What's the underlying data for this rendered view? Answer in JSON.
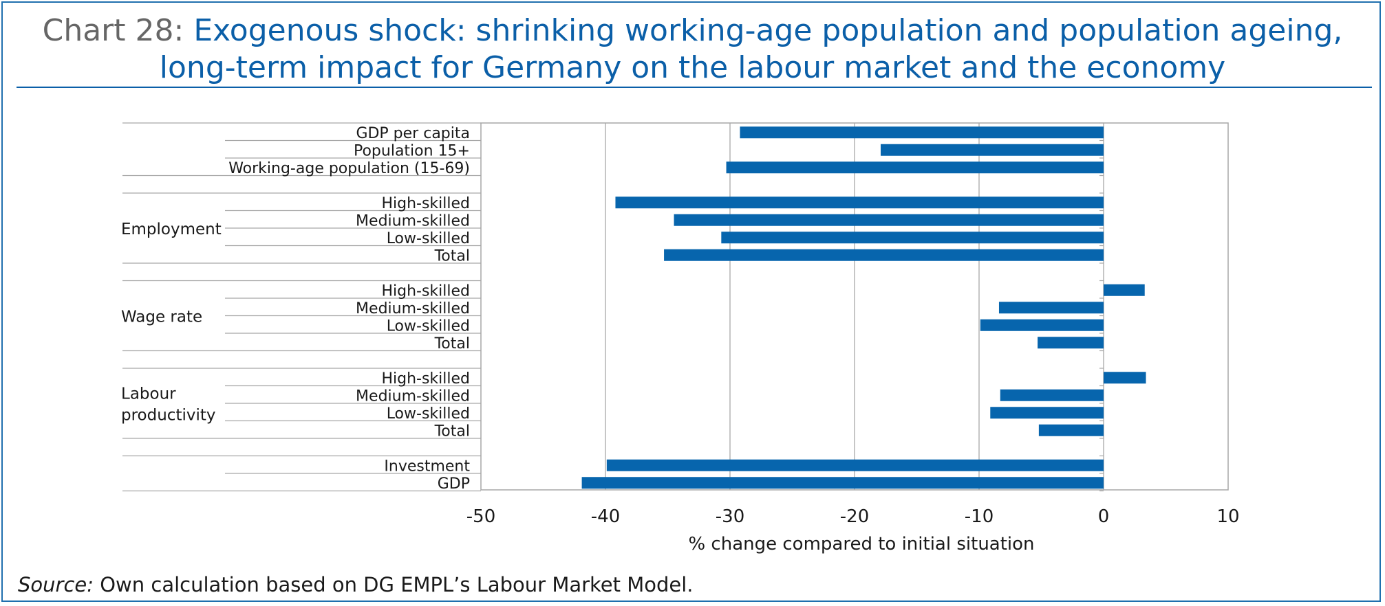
{
  "title": {
    "prefix": "Chart 28:",
    "line1": "Exogenous shock: shrinking working-age population and population ageing,",
    "line2": "long-term impact for Germany on the labour market and the economy"
  },
  "source": {
    "label": "Source:",
    "text": "Own calculation based on DG EMPL’s Labour Market Model."
  },
  "colors": {
    "bar": "#0765ad",
    "grid": "#b3b3b3",
    "title": "#0b5fa8"
  },
  "chart_data": {
    "type": "bar",
    "orientation": "horizontal",
    "xlabel": "% change compared to initial situation",
    "xlim": [
      -50,
      10
    ],
    "xticks": [
      -50,
      -40,
      -30,
      -20,
      -10,
      0,
      10
    ],
    "grid": true,
    "categories": [
      {
        "group": "",
        "label": "GDP per capita",
        "value": -29.2
      },
      {
        "group": "",
        "label": "Population 15+",
        "value": -17.9
      },
      {
        "group": "",
        "label": "Working-age population (15-69)",
        "value": -30.3
      },
      {
        "group": "Employment",
        "label": "High-skilled",
        "value": -39.2
      },
      {
        "group": "Employment",
        "label": "Medium-skilled",
        "value": -34.5
      },
      {
        "group": "Employment",
        "label": "Low-skilled",
        "value": -30.7
      },
      {
        "group": "Employment",
        "label": "Total",
        "value": -35.3
      },
      {
        "group": "Wage rate",
        "label": "High-skilled",
        "value": 3.3
      },
      {
        "group": "Wage rate",
        "label": "Medium-skilled",
        "value": -8.4
      },
      {
        "group": "Wage rate",
        "label": "Low-skilled",
        "value": -9.9
      },
      {
        "group": "Wage rate",
        "label": "Total",
        "value": -5.3
      },
      {
        "group": "Labour productivity",
        "label": "High-skilled",
        "value": 3.4
      },
      {
        "group": "Labour productivity",
        "label": "Medium-skilled",
        "value": -8.3
      },
      {
        "group": "Labour productivity",
        "label": "Low-skilled",
        "value": -9.1
      },
      {
        "group": "Labour productivity",
        "label": "Total",
        "value": -5.2
      },
      {
        "group": "",
        "label": "Investment",
        "value": -39.9
      },
      {
        "group": "",
        "label": "GDP",
        "value": -41.9
      }
    ],
    "group_labels": [
      {
        "name": "Employment",
        "lines": [
          "Employment"
        ]
      },
      {
        "name": "Wage rate",
        "lines": [
          "Wage rate"
        ]
      },
      {
        "name": "Labour productivity",
        "lines": [
          "Labour",
          "productivity"
        ]
      }
    ]
  }
}
